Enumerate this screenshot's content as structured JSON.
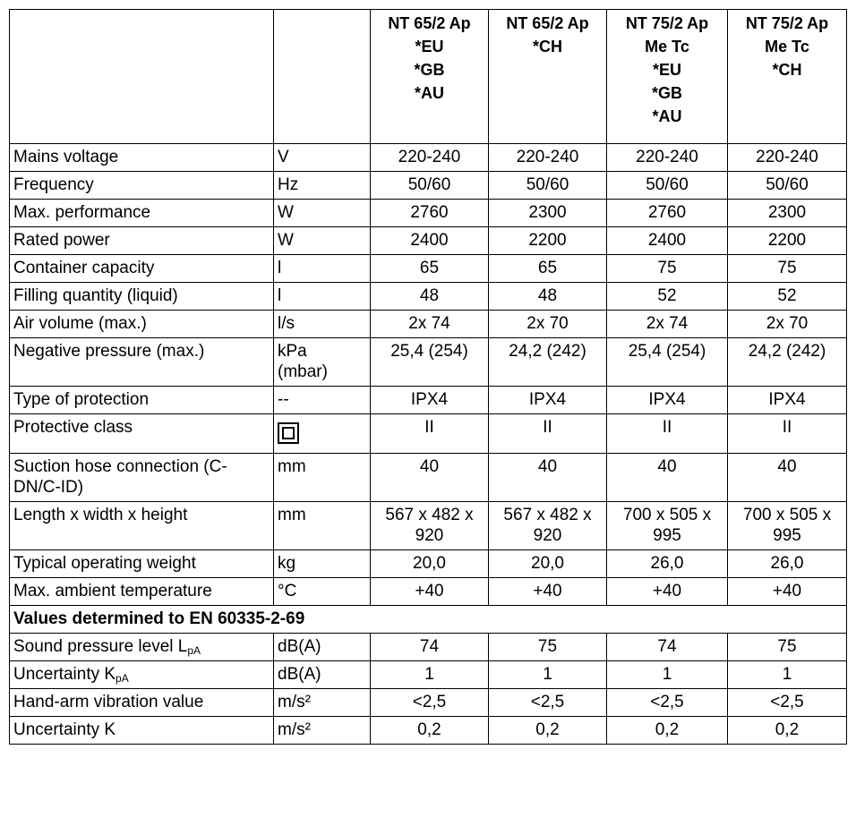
{
  "header": {
    "columns": [
      [
        "NT 65/2 Ap",
        "*EU",
        "*GB",
        "*AU"
      ],
      [
        "NT 65/2 Ap",
        "*CH"
      ],
      [
        "NT 75/2 Ap",
        "Me Tc",
        "*EU",
        "*GB",
        "*AU"
      ],
      [
        "NT 75/2 Ap",
        "Me Tc",
        "*CH"
      ]
    ]
  },
  "table": {
    "rows": [
      {
        "label": "Mains voltage",
        "unit": "V",
        "values": [
          "220-240",
          "220-240",
          "220-240",
          "220-240"
        ]
      },
      {
        "label": "Frequency",
        "unit": "Hz",
        "values": [
          "50/60",
          "50/60",
          "50/60",
          "50/60"
        ]
      },
      {
        "label": "Max. performance",
        "unit": "W",
        "values": [
          "2760",
          "2300",
          "2760",
          "2300"
        ]
      },
      {
        "label": "Rated power",
        "unit": "W",
        "values": [
          "2400",
          "2200",
          "2400",
          "2200"
        ]
      },
      {
        "label": "Container capacity",
        "unit": "l",
        "values": [
          "65",
          "65",
          "75",
          "75"
        ]
      },
      {
        "label": "Filling quantity (liquid)",
        "unit": "l",
        "values": [
          "48",
          "48",
          "52",
          "52"
        ]
      },
      {
        "label": "Air volume (max.)",
        "unit": "l/s",
        "values": [
          "2x 74",
          "2x 70",
          "2x 74",
          "2x 70"
        ]
      },
      {
        "label": "Negative pressure (max.)",
        "unit": "kPa (mbar)",
        "values": [
          "25,4 (254)",
          "24,2 (242)",
          "25,4 (254)",
          "24,2 (242)"
        ]
      },
      {
        "label": "Type of protection",
        "unit": "--",
        "values": [
          "IPX4",
          "IPX4",
          "IPX4",
          "IPX4"
        ]
      },
      {
        "label": "Protective class",
        "values": [
          "II",
          "II",
          "II",
          "II"
        ]
      },
      {
        "label": "Suction hose connection (C-DN/C-ID)",
        "unit": "mm",
        "values": [
          "40",
          "40",
          "40",
          "40"
        ]
      },
      {
        "label": "Length x width x height",
        "unit": "mm",
        "values": [
          "567 x 482 x 920",
          "567 x 482 x 920",
          "700 x 505 x 995",
          "700 x 505 x 995"
        ]
      },
      {
        "label": "Typical operating weight",
        "unit": "kg",
        "values": [
          "20,0",
          "20,0",
          "26,0",
          "26,0"
        ]
      },
      {
        "label": "Max. ambient temperature",
        "unit": "°C",
        "values": [
          "+40",
          "+40",
          "+40",
          "+40"
        ]
      },
      {
        "section": "Values determined to EN 60335-2-69"
      },
      {
        "label": "Sound pressure level L",
        "label_sub": "pA",
        "unit": "dB(A)",
        "values": [
          "74",
          "75",
          "74",
          "75"
        ]
      },
      {
        "label": "Uncertainty K",
        "label_sub": "pA",
        "unit": "dB(A)",
        "values": [
          "1",
          "1",
          "1",
          "1"
        ]
      },
      {
        "label": "Hand-arm vibration value",
        "unit": "m/s²",
        "values": [
          "<2,5",
          "<2,5",
          "<2,5",
          "<2,5"
        ]
      },
      {
        "label": "Uncertainty K",
        "unit": "m/s²",
        "values": [
          "0,2",
          "0,2",
          "0,2",
          "0,2"
        ]
      }
    ]
  }
}
